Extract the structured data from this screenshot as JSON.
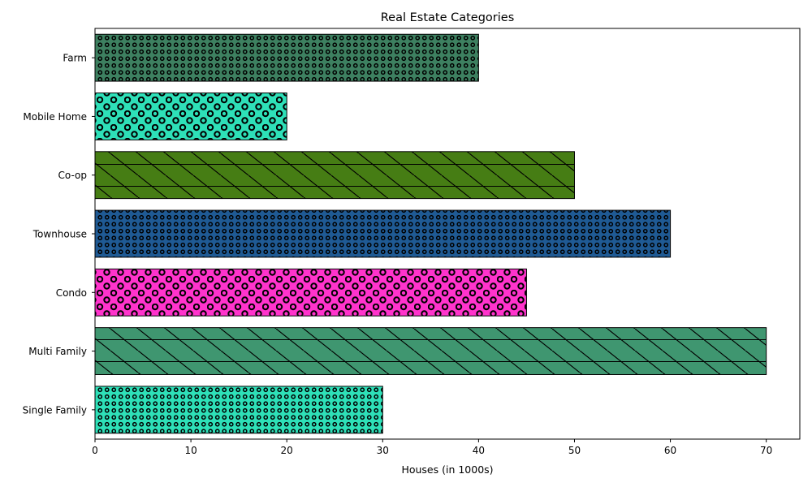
{
  "chart_data": {
    "type": "bar",
    "orientation": "horizontal",
    "title": "Real Estate Categories",
    "xlabel": "Houses (in 1000s)",
    "ylabel": "",
    "xlim": [
      0,
      73.5
    ],
    "xticks": [
      0,
      10,
      20,
      30,
      40,
      50,
      60,
      70
    ],
    "grid": false,
    "categories": [
      "Single Family",
      "Multi Family",
      "Condo",
      "Townhouse",
      "Co-op",
      "Mobile Home",
      "Farm"
    ],
    "values": [
      30,
      70,
      45,
      60,
      50,
      20,
      40
    ],
    "colors": [
      "#2ee0b8",
      "#3f9670",
      "#ff33cc",
      "#1f5a94",
      "#467d14",
      "#2ee0b8",
      "#3d8060"
    ],
    "hatches": [
      "dots-small",
      "diagonal-grid",
      "circles-large",
      "dots-small",
      "diagonal-grid",
      "circles-large",
      "dots-small"
    ]
  }
}
